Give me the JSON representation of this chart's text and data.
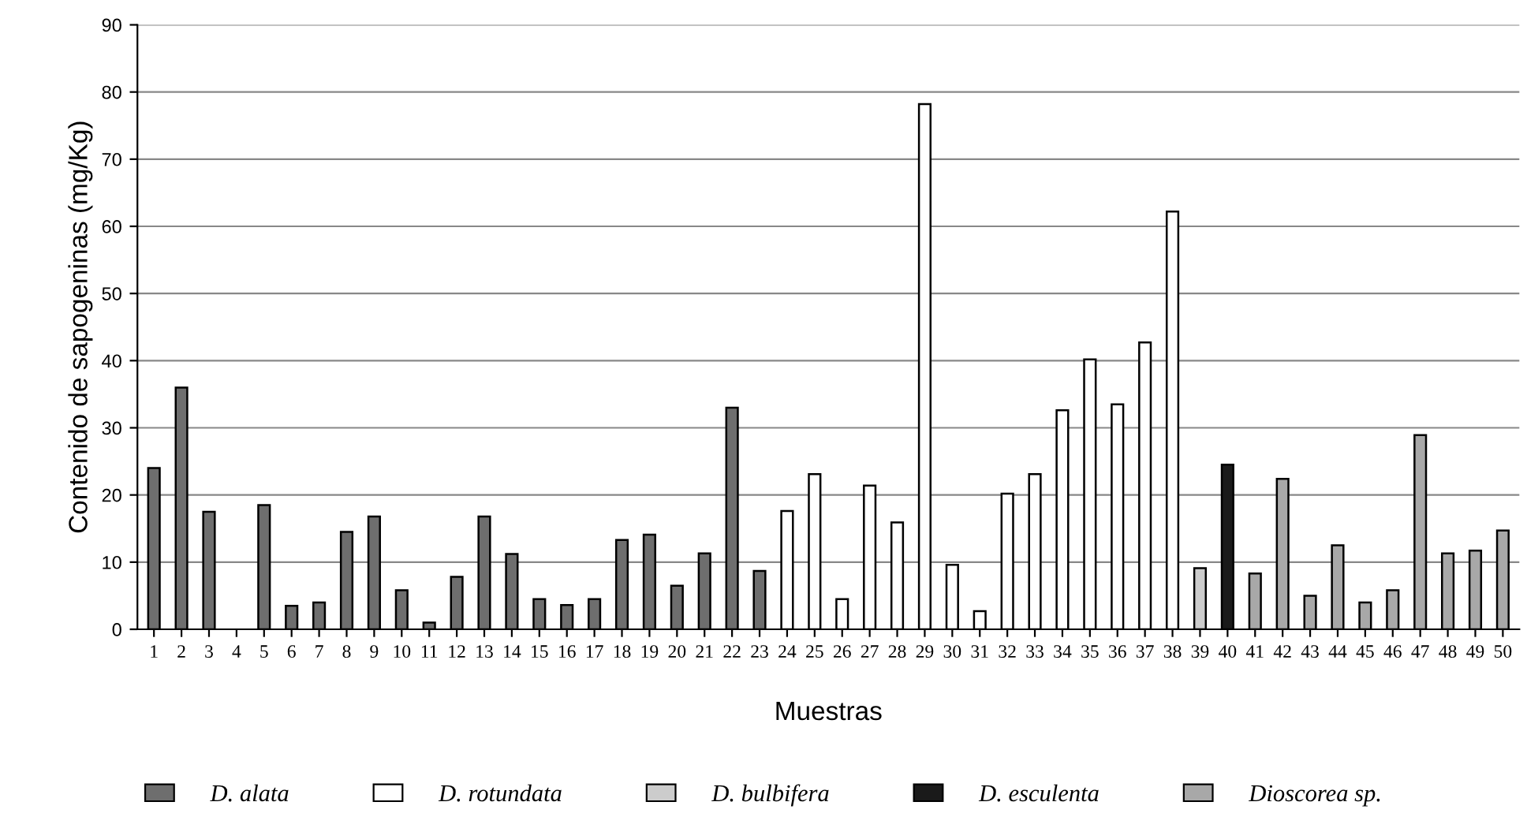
{
  "chart_data": {
    "type": "bar",
    "xlabel": "Muestras",
    "ylabel": "Contenido de sapogeninas (mg/Kg)",
    "categories": [
      "1",
      "2",
      "3",
      "4",
      "5",
      "6",
      "7",
      "8",
      "9",
      "10",
      "11",
      "12",
      "13",
      "14",
      "15",
      "16",
      "17",
      "18",
      "19",
      "20",
      "21",
      "22",
      "23",
      "24",
      "25",
      "26",
      "27",
      "28",
      "29",
      "30",
      "31",
      "32",
      "33",
      "34",
      "35",
      "36",
      "37",
      "38",
      "39",
      "40",
      "41",
      "42",
      "43",
      "44",
      "45",
      "46",
      "47",
      "48",
      "49",
      "50"
    ],
    "series": [
      {
        "name": "D. alata",
        "color": "#6e6e6e",
        "values": [
          24,
          36,
          17.5,
          null,
          18.5,
          3.5,
          4,
          14.5,
          16.8,
          5.8,
          1,
          7.8,
          16.8,
          11.2,
          4.5,
          3.6,
          4.5,
          13.3,
          14.1,
          6.5,
          11.3,
          33,
          8.7,
          null,
          null,
          null,
          null,
          null,
          null,
          null,
          null,
          null,
          null,
          null,
          null,
          null,
          null,
          null,
          null,
          null,
          null,
          null,
          null,
          null,
          null,
          null,
          null,
          null,
          null,
          null
        ]
      },
      {
        "name": "D. rotundata",
        "color": "#ffffff",
        "values": [
          null,
          null,
          null,
          null,
          null,
          null,
          null,
          null,
          null,
          null,
          null,
          null,
          null,
          null,
          null,
          null,
          null,
          null,
          null,
          null,
          null,
          null,
          null,
          17.6,
          23.1,
          4.5,
          21.4,
          15.9,
          78.2,
          9.6,
          2.7,
          20.2,
          23.1,
          32.6,
          40.2,
          33.5,
          42.7,
          62.2,
          null,
          null,
          null,
          null,
          null,
          null,
          null,
          null,
          null,
          null,
          null,
          null
        ]
      },
      {
        "name": "D. bulbifera",
        "color": "#cccccc",
        "values": [
          null,
          null,
          null,
          null,
          null,
          null,
          null,
          null,
          null,
          null,
          null,
          null,
          null,
          null,
          null,
          null,
          null,
          null,
          null,
          null,
          null,
          null,
          null,
          null,
          null,
          null,
          null,
          null,
          null,
          null,
          null,
          null,
          null,
          null,
          null,
          null,
          null,
          null,
          9.1,
          null,
          null,
          null,
          null,
          null,
          null,
          null,
          null,
          null,
          null,
          null
        ]
      },
      {
        "name": "D. esculenta",
        "color": "#1a1a1a",
        "values": [
          null,
          null,
          null,
          null,
          null,
          null,
          null,
          null,
          null,
          null,
          null,
          null,
          null,
          null,
          null,
          null,
          null,
          null,
          null,
          null,
          null,
          null,
          null,
          null,
          null,
          null,
          null,
          null,
          null,
          null,
          null,
          null,
          null,
          null,
          null,
          null,
          null,
          null,
          null,
          24.5,
          null,
          null,
          null,
          null,
          null,
          null,
          null,
          null,
          null,
          null
        ]
      },
      {
        "name": "Dioscorea sp.",
        "color": "#a8a8a8",
        "values": [
          null,
          null,
          null,
          null,
          null,
          null,
          null,
          null,
          null,
          null,
          null,
          null,
          null,
          null,
          null,
          null,
          null,
          null,
          null,
          null,
          null,
          null,
          null,
          null,
          null,
          null,
          null,
          null,
          null,
          null,
          null,
          null,
          null,
          null,
          null,
          null,
          null,
          null,
          null,
          null,
          8.3,
          22.4,
          5,
          12.5,
          4,
          5.8,
          28.9,
          11.3,
          11.7,
          14.7
        ]
      }
    ],
    "ylim": [
      0,
      90
    ],
    "yticks": [
      0,
      10,
      20,
      30,
      40,
      50,
      60,
      70,
      80,
      90
    ],
    "grid": "y",
    "legend": "bottom"
  }
}
